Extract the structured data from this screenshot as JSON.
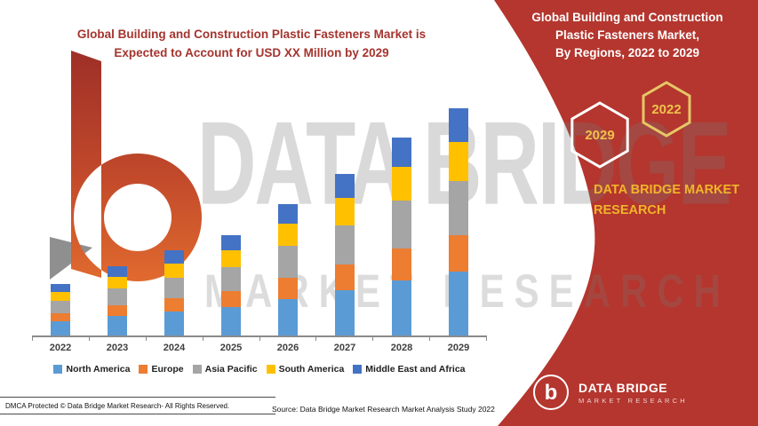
{
  "colors": {
    "brand_red": "#B4362E",
    "title_red": "#A5342E",
    "gold": "#F0B52B",
    "watermark_gray": "#9A9A9A",
    "axis_gray": "#8A8A8A"
  },
  "left_title": {
    "line1": "Global Building and Construction Plastic Fasteners Market is",
    "line2": "Expected to Account for  USD XX Million by 2029"
  },
  "right_title": {
    "line1": "Global Building and Construction",
    "line2": "Plastic Fasteners Market,",
    "line3": "By Regions, 2022 to 2029"
  },
  "badges": {
    "year_front": "2029",
    "year_back": "2022"
  },
  "brand_text": {
    "line1": "DATA BRIDGE MARKET",
    "line2": "RESEARCH"
  },
  "watermark": {
    "line1": "DATA BRIDGE",
    "line2": "MARKET RESEARCH"
  },
  "chart_data": {
    "type": "bar",
    "stacked": true,
    "title": "Global Building and Construction Plastic Fasteners Market, By Regions, 2022 to 2029",
    "value_note": "No y-axis shown (market sized as USD XX Million); segment values estimated from relative bar heights",
    "legend_position": "bottom",
    "grid": false,
    "categories": [
      "2022",
      "2023",
      "2024",
      "2025",
      "2026",
      "2027",
      "2028",
      "2029"
    ],
    "series": [
      {
        "name": "North America",
        "color": "#5B9BD5",
        "values": [
          16,
          22,
          27,
          32,
          41,
          51,
          62,
          72
        ]
      },
      {
        "name": "Europe",
        "color": "#ED7D31",
        "values": [
          9,
          12,
          15,
          18,
          24,
          29,
          36,
          41
        ]
      },
      {
        "name": "Asia Pacific",
        "color": "#A5A5A5",
        "values": [
          14,
          19,
          23,
          27,
          36,
          44,
          54,
          61
        ]
      },
      {
        "name": "South America",
        "color": "#FFC000",
        "values": [
          10,
          13,
          16,
          19,
          25,
          31,
          38,
          44
        ]
      },
      {
        "name": "Middle East and Africa",
        "color": "#4472C4",
        "values": [
          9,
          12,
          15,
          17,
          22,
          27,
          33,
          38
        ]
      }
    ],
    "totals": [
      58,
      78,
      96,
      113,
      148,
      182,
      223,
      256
    ]
  },
  "footer": {
    "dmca": "DMCA Protected © Data Bridge Market Research- All Rights Reserved.",
    "source": "Source: Data Bridge Market Research Market Analysis Study 2022"
  },
  "logo": {
    "name": "DATA BRIDGE",
    "tagline": "MARKET RESEARCH"
  }
}
